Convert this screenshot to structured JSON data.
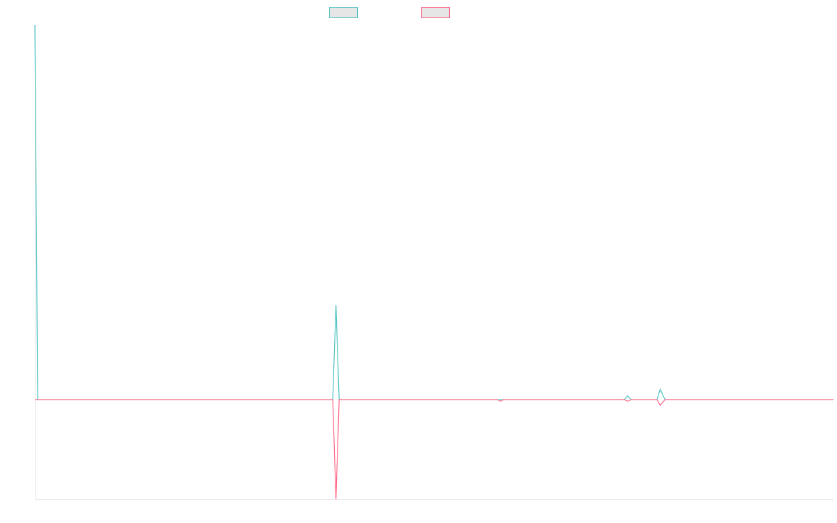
{
  "chart_data": {
    "type": "line",
    "x": [
      0,
      0.35,
      37.3,
      37.7,
      38.1,
      57.9,
      58.3,
      58.7,
      73.8,
      74.2,
      74.7,
      77.9,
      78.3,
      78.9,
      100
    ],
    "series": [
      {
        "color": "#4bc0c0",
        "values": [
          1,
          0,
          0,
          0.253,
          0,
          0,
          0,
          0,
          0,
          0.01,
          0,
          0,
          0.028,
          0,
          0
        ]
      },
      {
        "color": "#ff6384",
        "values": [
          0,
          0,
          0,
          -0.266,
          0,
          0,
          -0.004,
          0,
          0,
          -0.004,
          0,
          0,
          -0.015,
          0,
          0
        ]
      }
    ],
    "xlim": [
      0,
      100
    ],
    "ylim": [
      -0.266,
      1
    ],
    "legend": "top"
  }
}
